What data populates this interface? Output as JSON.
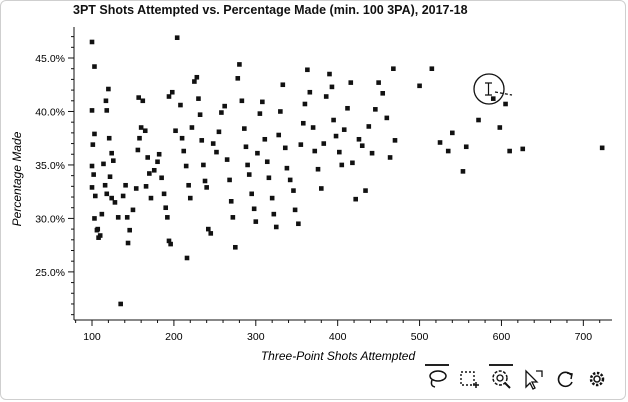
{
  "chart_data": {
    "type": "scatter",
    "title": "3PT Shots Attempted vs. Percentage Made (min. 100 3PA), 2017-18",
    "xlabel": "Three-Point Shots Attempted",
    "ylabel": "Percentage Made",
    "xlim": [
      78,
      735
    ],
    "ylim": [
      20.5,
      47.9
    ],
    "x_ticks": [
      100,
      200,
      300,
      400,
      500,
      600,
      700
    ],
    "y_ticks": [
      25,
      30,
      35,
      40,
      45
    ],
    "y_tick_labels": [
      "25.0%",
      "30.0%",
      "35.0%",
      "40.0%",
      "45.0%"
    ],
    "marker_color": "#111111",
    "grid": false,
    "points": [
      [
        100,
        46.5
      ],
      [
        103,
        44.2
      ],
      [
        100,
        40.1
      ],
      [
        103,
        37.9
      ],
      [
        101,
        36.9
      ],
      [
        100,
        34.9
      ],
      [
        102,
        34.1
      ],
      [
        100,
        32.9
      ],
      [
        104,
        32.1
      ],
      [
        103,
        30.0
      ],
      [
        107,
        29.0
      ],
      [
        110,
        28.4
      ],
      [
        108,
        28.2
      ],
      [
        106,
        28.9
      ],
      [
        112,
        30.4
      ],
      [
        114,
        35.1
      ],
      [
        116,
        33.1
      ],
      [
        118,
        40.1
      ],
      [
        120,
        42.1
      ],
      [
        117,
        41.0
      ],
      [
        121,
        37.5
      ],
      [
        124,
        36.1
      ],
      [
        126,
        35.4
      ],
      [
        122,
        33.9
      ],
      [
        118,
        32.3
      ],
      [
        124,
        31.9
      ],
      [
        128,
        31.5
      ],
      [
        132,
        30.1
      ],
      [
        135,
        22.0
      ],
      [
        138,
        32.1
      ],
      [
        141,
        33.1
      ],
      [
        143,
        30.1
      ],
      [
        146,
        28.9
      ],
      [
        144,
        27.7
      ],
      [
        150,
        30.8
      ],
      [
        154,
        32.8
      ],
      [
        156,
        36.4
      ],
      [
        158,
        37.5
      ],
      [
        160,
        38.5
      ],
      [
        157,
        41.3
      ],
      [
        162,
        41.0
      ],
      [
        165,
        38.2
      ],
      [
        168,
        35.7
      ],
      [
        170,
        34.2
      ],
      [
        166,
        33.0
      ],
      [
        172,
        31.9
      ],
      [
        176,
        34.5
      ],
      [
        180,
        35.3
      ],
      [
        182,
        36.0
      ],
      [
        185,
        33.8
      ],
      [
        188,
        32.3
      ],
      [
        190,
        31.0
      ],
      [
        192,
        30.1
      ],
      [
        194,
        27.9
      ],
      [
        196,
        27.6
      ],
      [
        194,
        41.4
      ],
      [
        198,
        41.8
      ],
      [
        202,
        38.2
      ],
      [
        204,
        46.9
      ],
      [
        208,
        40.6
      ],
      [
        210,
        37.5
      ],
      [
        212,
        36.3
      ],
      [
        215,
        34.9
      ],
      [
        218,
        33.1
      ],
      [
        220,
        31.9
      ],
      [
        216,
        26.3
      ],
      [
        222,
        38.5
      ],
      [
        225,
        42.8
      ],
      [
        228,
        43.2
      ],
      [
        230,
        41.2
      ],
      [
        232,
        39.7
      ],
      [
        234,
        37.3
      ],
      [
        236,
        35.0
      ],
      [
        238,
        33.5
      ],
      [
        240,
        32.9
      ],
      [
        242,
        29.0
      ],
      [
        245,
        28.6
      ],
      [
        248,
        37.0
      ],
      [
        252,
        36.2
      ],
      [
        255,
        38.1
      ],
      [
        258,
        39.9
      ],
      [
        262,
        40.5
      ],
      [
        265,
        35.5
      ],
      [
        268,
        33.6
      ],
      [
        270,
        31.6
      ],
      [
        272,
        30.1
      ],
      [
        275,
        27.3
      ],
      [
        278,
        43.1
      ],
      [
        280,
        44.4
      ],
      [
        283,
        41.0
      ],
      [
        286,
        38.4
      ],
      [
        288,
        36.7
      ],
      [
        290,
        35.0
      ],
      [
        292,
        34.1
      ],
      [
        295,
        32.3
      ],
      [
        298,
        30.9
      ],
      [
        300,
        29.7
      ],
      [
        302,
        36.1
      ],
      [
        305,
        39.8
      ],
      [
        308,
        40.9
      ],
      [
        311,
        37.4
      ],
      [
        314,
        35.3
      ],
      [
        316,
        33.8
      ],
      [
        320,
        31.9
      ],
      [
        322,
        30.4
      ],
      [
        325,
        29.2
      ],
      [
        328,
        37.8
      ],
      [
        330,
        40.0
      ],
      [
        333,
        42.5
      ],
      [
        336,
        36.6
      ],
      [
        338,
        34.7
      ],
      [
        342,
        33.6
      ],
      [
        346,
        32.6
      ],
      [
        348,
        30.8
      ],
      [
        352,
        29.5
      ],
      [
        355,
        36.9
      ],
      [
        358,
        38.9
      ],
      [
        360,
        40.7
      ],
      [
        363,
        43.9
      ],
      [
        366,
        41.8
      ],
      [
        370,
        38.5
      ],
      [
        372,
        36.3
      ],
      [
        376,
        34.6
      ],
      [
        380,
        32.8
      ],
      [
        383,
        37.0
      ],
      [
        386,
        41.4
      ],
      [
        390,
        43.5
      ],
      [
        393,
        42.3
      ],
      [
        395,
        39.2
      ],
      [
        398,
        37.7
      ],
      [
        402,
        36.2
      ],
      [
        405,
        35.0
      ],
      [
        408,
        38.3
      ],
      [
        412,
        40.3
      ],
      [
        416,
        42.7
      ],
      [
        418,
        35.2
      ],
      [
        422,
        31.8
      ],
      [
        426,
        37.4
      ],
      [
        430,
        36.8
      ],
      [
        434,
        32.6
      ],
      [
        438,
        38.6
      ],
      [
        442,
        36.1
      ],
      [
        446,
        40.2
      ],
      [
        450,
        42.7
      ],
      [
        455,
        41.7
      ],
      [
        460,
        39.4
      ],
      [
        464,
        35.7
      ],
      [
        468,
        44.0
      ],
      [
        470,
        37.3
      ],
      [
        500,
        42.4
      ],
      [
        515,
        44.0
      ],
      [
        525,
        37.1
      ],
      [
        535,
        36.3
      ],
      [
        540,
        38.0
      ],
      [
        553,
        34.4
      ],
      [
        557,
        36.7
      ],
      [
        572,
        39.2
      ],
      [
        590,
        41.2
      ],
      [
        598,
        38.5
      ],
      [
        605,
        40.7
      ],
      [
        610,
        36.3
      ],
      [
        626,
        36.5
      ],
      [
        723,
        36.6
      ]
    ]
  },
  "toolbar": {
    "tools": [
      {
        "icon": "lasso-select-icon",
        "active": true
      },
      {
        "icon": "box-select-icon",
        "active": false
      },
      {
        "icon": "wheel-zoom-icon",
        "active": true
      },
      {
        "icon": "hover-icon",
        "active": false
      },
      {
        "icon": "reset-icon",
        "active": false
      },
      {
        "icon": "settings-gear-icon",
        "active": false
      }
    ]
  }
}
